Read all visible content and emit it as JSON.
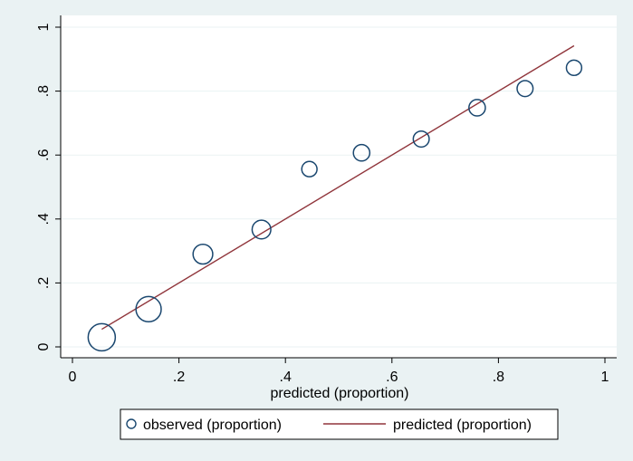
{
  "chart_data": {
    "type": "scatter",
    "xlabel": "predicted (proportion)",
    "ylabel": "",
    "xlim": [
      0,
      1
    ],
    "ylim": [
      0,
      1
    ],
    "x_ticks": [
      0,
      0.2,
      0.4,
      0.6,
      0.8,
      1
    ],
    "x_tick_labels": [
      "0",
      ".2",
      ".4",
      ".6",
      ".8",
      "1"
    ],
    "y_ticks": [
      0,
      0.2,
      0.4,
      0.6,
      0.8,
      1
    ],
    "y_tick_labels": [
      "0",
      ".2",
      ".4",
      ".6",
      ".8",
      "1"
    ],
    "grid": "horizontal",
    "legend_position": "bottom",
    "series": [
      {
        "name": "observed (proportion)",
        "kind": "scatter",
        "marker": "hollow-circle",
        "color": "#1a476f",
        "points": [
          {
            "x": 0.055,
            "y": 0.03,
            "weight": 1.0
          },
          {
            "x": 0.143,
            "y": 0.118,
            "weight": 0.88
          },
          {
            "x": 0.245,
            "y": 0.29,
            "weight": 0.54
          },
          {
            "x": 0.355,
            "y": 0.367,
            "weight": 0.48
          },
          {
            "x": 0.445,
            "y": 0.556,
            "weight": 0.27
          },
          {
            "x": 0.543,
            "y": 0.607,
            "weight": 0.34
          },
          {
            "x": 0.655,
            "y": 0.65,
            "weight": 0.31
          },
          {
            "x": 0.76,
            "y": 0.748,
            "weight": 0.34
          },
          {
            "x": 0.85,
            "y": 0.808,
            "weight": 0.31
          },
          {
            "x": 0.942,
            "y": 0.873,
            "weight": 0.27
          }
        ]
      },
      {
        "name": "predicted (proportion)",
        "kind": "line",
        "color": "#90353b",
        "points": [
          {
            "x": 0.055,
            "y": 0.055
          },
          {
            "x": 0.942,
            "y": 0.942
          }
        ]
      }
    ]
  },
  "colors": {
    "outer_background": "#eaf2f3",
    "plot_background": "#ffffff",
    "grid": "#eaf2f3",
    "marker": "#1a476f",
    "line": "#90353b"
  }
}
